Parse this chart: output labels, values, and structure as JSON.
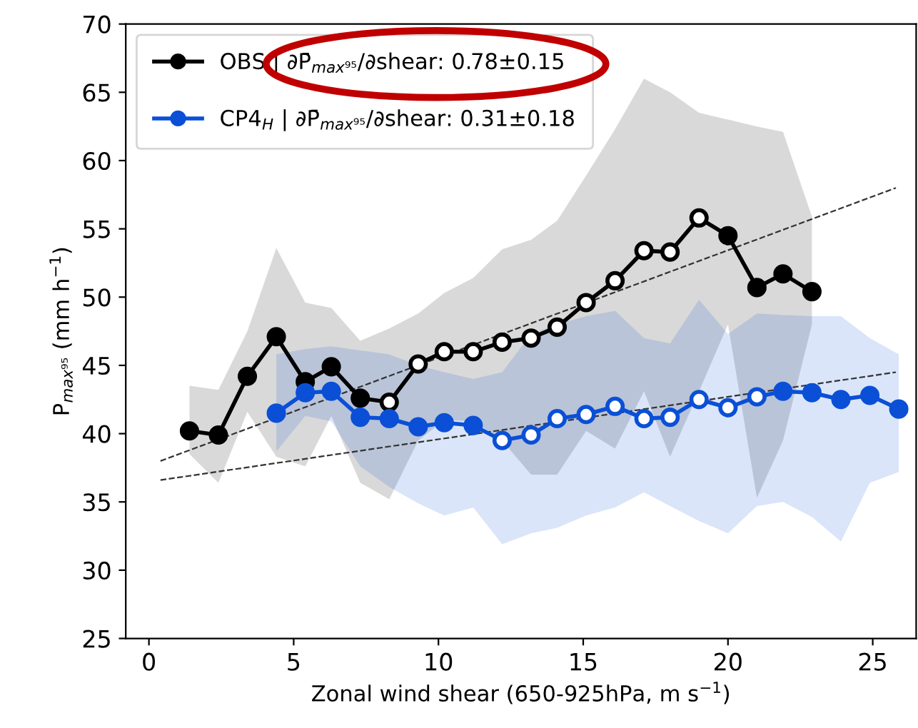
{
  "chart_data": {
    "type": "line",
    "xlabel": "Zonal wind shear (650-925hPa, m s$^{−1}$)",
    "ylabel": "P$_{max⁹⁵}$ (mm h$^{−1}$)",
    "xlim": [
      -0.8,
      26.5
    ],
    "xticks": [
      0,
      5,
      10,
      15,
      20,
      25
    ],
    "ylim": [
      25,
      70
    ],
    "yticks": [
      25,
      30,
      35,
      40,
      45,
      50,
      55,
      60,
      65,
      70
    ],
    "grid": false,
    "legend": "top left",
    "marker": "circle",
    "line_style": "solid",
    "series": [
      {
        "type": "line",
        "x": [
          0.4,
          25.8
        ],
        "values": [
          38.0,
          58.0
        ],
        "color": "#333333",
        "line_style": "dashed",
        "marker": "none"
      },
      {
        "type": "line",
        "x": [
          0.4,
          25.8
        ],
        "values": [
          36.6,
          44.5
        ],
        "color": "#333333",
        "line_style": "dashed",
        "marker": "none"
      },
      {
        "name": "OBS | ∂P̄$_{max⁹⁵}$/∂shear: 0.78±0.15",
        "color": "#000000",
        "x": [
          1.4,
          2.4,
          3.4,
          4.4,
          5.4,
          6.3,
          7.3,
          8.3,
          9.3,
          10.2,
          11.2,
          12.2,
          13.2,
          14.1,
          15.1,
          16.1,
          17.1,
          18.0,
          19.0,
          20.0,
          21.0,
          21.9,
          22.9
        ],
        "values": [
          40.2,
          39.9,
          44.2,
          47.1,
          43.8,
          44.9,
          42.6,
          42.3,
          45.1,
          46.0,
          46.0,
          46.7,
          47.0,
          47.8,
          49.6,
          51.2,
          53.4,
          53.3,
          55.8,
          54.5,
          50.7,
          51.7,
          50.4
        ],
        "lower": [
          38.5,
          36.4,
          41.6,
          38.3,
          37.6,
          41.3,
          36.4,
          35.2,
          39.5,
          41.0,
          40.9,
          39.5,
          37.0,
          37.0,
          40.2,
          38.9,
          43.1,
          38.3,
          43.1,
          48.0,
          35.3,
          39.5,
          48.0
        ],
        "upper": [
          43.5,
          43.2,
          47.5,
          53.6,
          49.6,
          49.2,
          46.8,
          47.7,
          48.8,
          50.3,
          51.4,
          53.5,
          54.2,
          55.6,
          58.9,
          62.3,
          66.0,
          65.0,
          63.5,
          63.0,
          62.5,
          62.1,
          55.9
        ],
        "colors": [
          "#000000",
          "#000000",
          "#000000",
          "#000000",
          "#000000",
          "#000000",
          "#000000",
          "#ffffff",
          "#ffffff",
          "#ffffff",
          "#ffffff",
          "#ffffff",
          "#ffffff",
          "#ffffff",
          "#ffffff",
          "#ffffff",
          "#ffffff",
          "#ffffff",
          "#ffffff",
          "#000000",
          "#000000",
          "#000000",
          "#000000"
        ]
      },
      {
        "name": "CP4$_{H}$ | ∂P̄$_{max⁹⁵}$/∂shear: 0.31±0.18",
        "color": "#0a4fd6",
        "x": [
          4.4,
          5.4,
          6.3,
          7.3,
          8.3,
          9.3,
          10.2,
          11.2,
          12.2,
          13.2,
          14.1,
          15.1,
          16.1,
          17.1,
          18.0,
          19.0,
          20.0,
          21.0,
          21.9,
          22.9,
          23.9,
          24.9,
          25.9
        ],
        "values": [
          41.5,
          43.0,
          43.1,
          41.2,
          41.1,
          40.5,
          40.8,
          40.6,
          39.5,
          39.9,
          41.1,
          41.4,
          42.0,
          41.1,
          41.2,
          42.5,
          41.9,
          42.7,
          43.1,
          43.0,
          42.5,
          42.8,
          41.8
        ],
        "lower": [
          38.7,
          41.3,
          40.9,
          37.6,
          36.1,
          34.9,
          34.0,
          34.6,
          31.9,
          32.7,
          33.1,
          34.0,
          34.6,
          35.7,
          34.7,
          33.6,
          32.7,
          34.7,
          35.0,
          33.9,
          32.1,
          36.4,
          37.2
        ],
        "upper": [
          45.8,
          46.2,
          46.4,
          46.1,
          45.8,
          45.0,
          44.5,
          44.0,
          44.5,
          47.3,
          48.0,
          48.6,
          49.0,
          47.0,
          46.6,
          49.8,
          47.3,
          48.8,
          48.7,
          48.6,
          48.6,
          47.0,
          45.8
        ],
        "colors": [
          "#0a4fd6",
          "#0a4fd6",
          "#0a4fd6",
          "#0a4fd6",
          "#0a4fd6",
          "#0a4fd6",
          "#0a4fd6",
          "#0a4fd6",
          "#ffffff",
          "#ffffff",
          "#ffffff",
          "#ffffff",
          "#ffffff",
          "#ffffff",
          "#ffffff",
          "#ffffff",
          "#ffffff",
          "#ffffff",
          "#0a4fd6",
          "#0a4fd6",
          "#0a4fd6",
          "#0a4fd6",
          "#0a4fd6"
        ]
      }
    ]
  }
}
